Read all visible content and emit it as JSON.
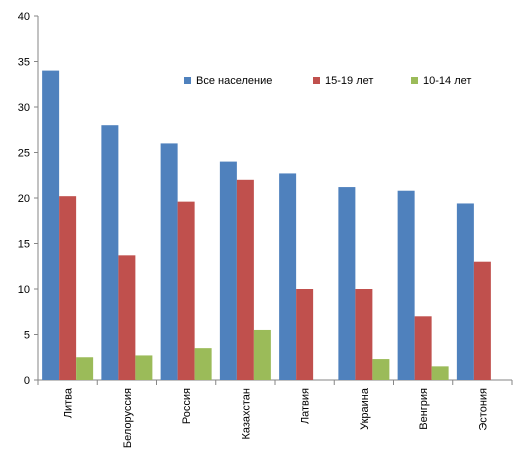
{
  "chart_data": {
    "type": "bar",
    "title": "",
    "xlabel": "",
    "ylabel": "",
    "ylim": [
      0,
      40
    ],
    "yticks": [
      0,
      5,
      10,
      15,
      20,
      25,
      30,
      35,
      40
    ],
    "grid": false,
    "legend_position": "top-right",
    "categories": [
      "Литва",
      "Белоруссия",
      "Россия",
      "Казахстан",
      "Латвия",
      "Украина",
      "Венгрия",
      "Эстония"
    ],
    "series": [
      {
        "name": "Все население",
        "color": "#4F81BD",
        "values": [
          34,
          28,
          26,
          24,
          22.7,
          21.2,
          20.8,
          19.4
        ]
      },
      {
        "name": "15-19 лет",
        "color": "#C0504D",
        "values": [
          20.2,
          13.7,
          19.6,
          22,
          10,
          10,
          7,
          13
        ]
      },
      {
        "name": "10-14 лет",
        "color": "#9BBB59",
        "values": [
          2.5,
          2.7,
          3.5,
          5.5,
          0,
          2.3,
          1.5,
          0
        ]
      }
    ]
  }
}
